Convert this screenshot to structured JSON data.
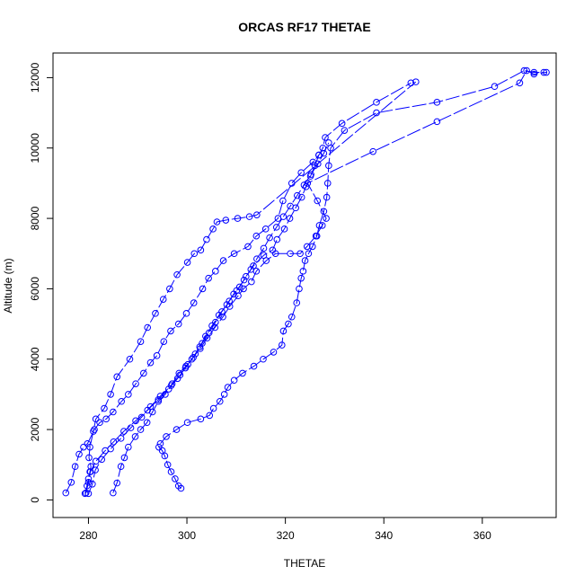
{
  "chart_data": {
    "type": "line",
    "title": "ORCAS RF17 THETAE",
    "xlabel": "THETAE",
    "ylabel": "Altitude (m)",
    "xlim": [
      272.8,
      375.0
    ],
    "ylim": [
      -500,
      12700
    ],
    "xticks": [
      280,
      300,
      320,
      340,
      360
    ],
    "yticks": [
      0,
      2000,
      4000,
      6000,
      8000,
      10000,
      12000
    ],
    "grid": false,
    "legend": "none",
    "point_style": "open-circle",
    "line_style": "dashed",
    "color": "#0000ff",
    "series": [
      {
        "x": [
          279.3,
          279.7,
          280.0,
          280.3,
          280.5,
          280.1,
          280.3,
          281.0,
          281.5,
          283.2,
          284.5,
          285.8,
          288.4,
          290.6,
          292.0,
          293.6,
          295.2,
          296.5,
          298.0,
          300.1,
          301.5,
          302.8,
          304.0,
          305.3,
          306.1,
          307.9,
          310.3,
          312.7,
          314.2,
          346.5
        ],
        "y": [
          180,
          400,
          600,
          800,
          950,
          1200,
          1500,
          1950,
          2300,
          2600,
          3000,
          3500,
          4000,
          4500,
          4900,
          5300,
          5700,
          6000,
          6400,
          6750,
          7000,
          7100,
          7400,
          7700,
          7900,
          7950,
          8000,
          8050,
          8100,
          11880
        ]
      },
      {
        "x": [
          275.4,
          276.5,
          277.3,
          278.1,
          279.0,
          279.8,
          281.2,
          282.3,
          283.6,
          285.0,
          286.7,
          288.1,
          289.6,
          291.2,
          292.6,
          293.9,
          295.3,
          296.7,
          298.3,
          299.9,
          301.4,
          303.2,
          304.4,
          305.8,
          307.4,
          309.6,
          312.4,
          314.1,
          316.0,
          318.5,
          319.5,
          321.3,
          323.2,
          325.6,
          326.8,
          327.6,
          328.1,
          331.5,
          338.5,
          345.5
        ],
        "y": [
          200,
          500,
          950,
          1300,
          1500,
          1600,
          2000,
          2200,
          2300,
          2500,
          2800,
          3000,
          3300,
          3600,
          3900,
          4100,
          4500,
          4800,
          5000,
          5300,
          5600,
          6000,
          6300,
          6500,
          6800,
          7000,
          7200,
          7500,
          7700,
          8000,
          8500,
          9000,
          9300,
          9600,
          9800,
          10000,
          10300,
          10700,
          11300,
          11850
        ]
      },
      {
        "x": [
          298.8,
          298.3,
          297.6,
          296.8,
          296.1,
          295.5,
          295.0,
          294.3,
          294.6,
          295.8,
          297.9,
          300.1,
          302.8,
          304.6,
          305.4,
          306.7,
          307.6,
          308.3,
          309.6,
          311.3,
          313.6,
          315.5,
          317.6,
          319.3,
          319.6,
          320.6,
          321.3,
          322.3,
          322.8,
          323.2,
          323.6,
          324.0,
          324.7,
          325.5,
          326.4,
          326.9,
          327.8,
          328.4,
          328.6,
          328.8,
          329.2,
          332.0,
          338.5,
          350.8,
          362.5,
          368.5,
          370.5,
          372.5
        ],
        "y": [
          330,
          400,
          600,
          800,
          1000,
          1250,
          1400,
          1500,
          1600,
          1800,
          2000,
          2200,
          2300,
          2400,
          2600,
          2800,
          3000,
          3200,
          3400,
          3600,
          3800,
          4000,
          4200,
          4400,
          4800,
          5000,
          5200,
          5600,
          6000,
          6300,
          6500,
          6800,
          7000,
          7200,
          7500,
          7800,
          8200,
          8600,
          9000,
          9500,
          10000,
          10500,
          11000,
          11300,
          11750,
          12200,
          12150,
          12150
        ]
      },
      {
        "x": [
          285.0,
          285.8,
          286.6,
          287.3,
          288.1,
          289.5,
          290.6,
          291.9,
          293.0,
          294.2,
          295.6,
          297.0,
          298.4,
          299.8,
          301.0,
          302.7,
          304.1,
          305.7,
          307.3,
          308.7,
          310.4,
          311.5,
          313.1,
          314.1,
          316.1,
          318.0,
          321.0,
          323.0,
          324.4,
          326.2,
          327.5,
          328.3,
          326.5,
          324.5,
          337.8,
          350.8,
          367.6,
          369.0,
          370.5,
          373.0
        ],
        "y": [
          200,
          480,
          950,
          1200,
          1500,
          1800,
          2000,
          2200,
          2500,
          2800,
          3000,
          3300,
          3600,
          3800,
          4000,
          4300,
          4600,
          4900,
          5200,
          5500,
          5800,
          6000,
          6200,
          6500,
          6800,
          7000,
          7000,
          7000,
          7200,
          7500,
          7800,
          8000,
          8500,
          9000,
          9900,
          10750,
          11850,
          12200,
          12100,
          12150
        ]
      },
      {
        "x": [
          279.5,
          280.0,
          280.4,
          281.5,
          283.4,
          285.1,
          287.2,
          289.6,
          292.0,
          294.2,
          296.3,
          298.1,
          299.7,
          301.3,
          302.6,
          303.8,
          305.1,
          306.5,
          308.1,
          309.5,
          310.7,
          312.0,
          313.5,
          315.6,
          317.4,
          318.3,
          319.8,
          320.9,
          322.1,
          323.3,
          324.2,
          325.1,
          326.0,
          326.8
        ],
        "y": [
          200,
          500,
          800,
          1100,
          1400,
          1650,
          1950,
          2250,
          2550,
          2850,
          3150,
          3450,
          3750,
          4050,
          4350,
          4650,
          4950,
          5250,
          5550,
          5850,
          6050,
          6350,
          6650,
          6950,
          7100,
          7400,
          7700,
          8000,
          8300,
          8600,
          8900,
          9200,
          9500,
          9800
        ]
      },
      {
        "x": [
          280.0,
          280.8,
          281.4,
          282.7,
          284.5,
          286.6,
          288.6,
          290.8,
          292.6,
          294.6,
          296.8,
          298.6,
          300.2,
          301.7,
          303.1,
          304.5,
          305.8,
          307.1,
          308.6,
          310.1,
          311.6,
          313.0,
          314.2,
          315.6,
          316.8,
          318.2,
          319.6,
          321.0,
          322.4,
          323.8,
          325.2,
          326.6,
          327.8,
          328.8
        ],
        "y": [
          180,
          450,
          850,
          1150,
          1450,
          1750,
          2050,
          2350,
          2650,
          2950,
          3250,
          3550,
          3850,
          4150,
          4450,
          4750,
          5050,
          5350,
          5650,
          5950,
          6250,
          6550,
          6850,
          7150,
          7450,
          7750,
          8050,
          8350,
          8650,
          8950,
          9250,
          9550,
          9850,
          10150
        ]
      }
    ]
  }
}
